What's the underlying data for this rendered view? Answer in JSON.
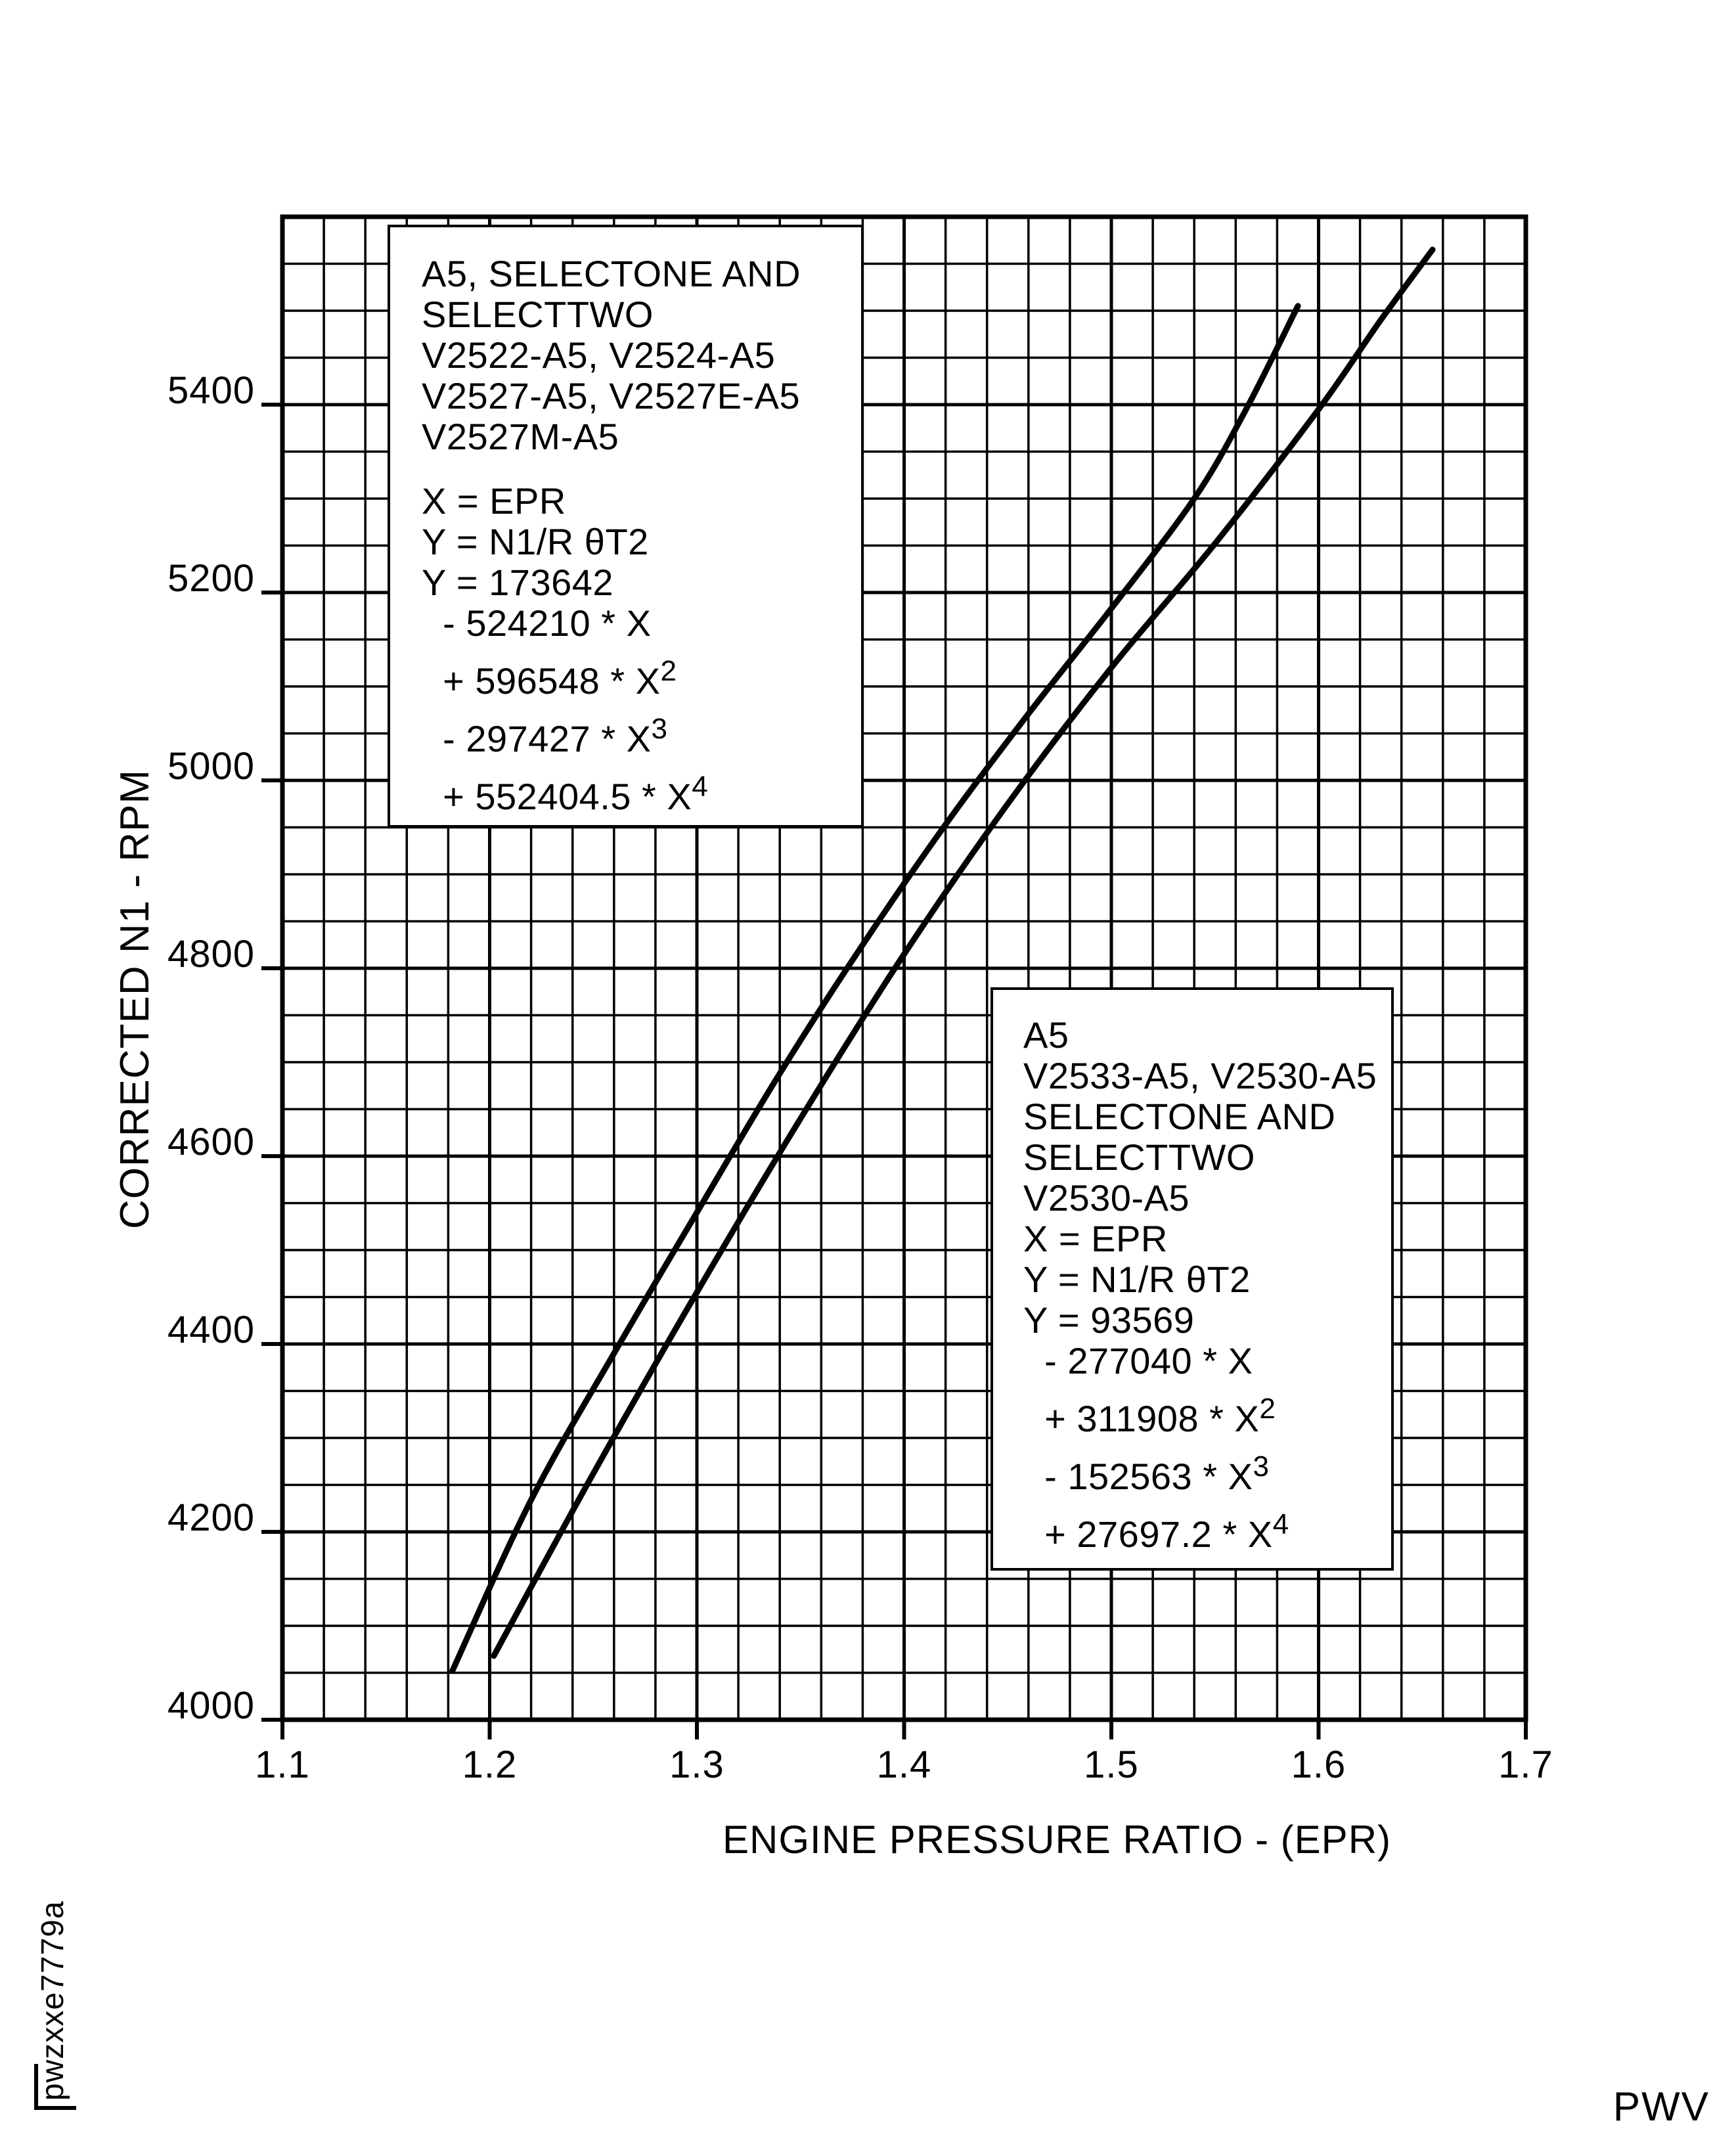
{
  "page": {
    "background": "#ffffff",
    "ink": "#000000"
  },
  "footer": {
    "watermark": "pwzxxe7779a",
    "publisher_code": "PWV"
  },
  "chart_data": {
    "type": "line",
    "title": "",
    "xlabel": "ENGINE PRESSURE RATIO - (EPR)",
    "ylabel": "CORRECTED N1 - RPM",
    "xlim": [
      1.1,
      1.7
    ],
    "ylim": [
      4000,
      5600
    ],
    "x_major_step": 0.1,
    "x_minor_step": 0.02,
    "y_major_step": 200,
    "y_minor_step": 50,
    "x_tick_labels": [
      "1.1",
      "1.2",
      "1.3",
      "1.4",
      "1.5",
      "1.6",
      "1.7"
    ],
    "y_tick_labels": [
      "4000",
      "4200",
      "4400",
      "4600",
      "4800",
      "5000",
      "5200",
      "5400"
    ],
    "grid": true,
    "legend_position": "annotation boxes inside plot",
    "line_color": "#000000",
    "line_width": 9,
    "series": [
      {
        "name": "A5, SELECTONE AND SELECTTWO (V2522-A5, V2524-A5, V2527-A5, V2527E-A5, V2527M-A5)",
        "points": [
          [
            1.182,
            4052
          ],
          [
            1.22,
            4234
          ],
          [
            1.26,
            4390
          ],
          [
            1.3,
            4540
          ],
          [
            1.34,
            4688
          ],
          [
            1.38,
            4825
          ],
          [
            1.42,
            4953
          ],
          [
            1.46,
            5071
          ],
          [
            1.5,
            5183
          ],
          [
            1.54,
            5300
          ],
          [
            1.565,
            5395
          ],
          [
            1.59,
            5505
          ]
        ]
      },
      {
        "name": "A5 (V2533-A5, V2530-A5) SELECTONE AND SELECTTWO (V2530-A5)",
        "points": [
          [
            1.202,
            4068
          ],
          [
            1.25,
            4262
          ],
          [
            1.3,
            4455
          ],
          [
            1.35,
            4640
          ],
          [
            1.4,
            4815
          ],
          [
            1.45,
            4975
          ],
          [
            1.5,
            5120
          ],
          [
            1.55,
            5252
          ],
          [
            1.6,
            5395
          ],
          [
            1.63,
            5490
          ],
          [
            1.655,
            5565
          ]
        ]
      }
    ],
    "annotations": [
      {
        "id": "equation-box-1",
        "lines": [
          "A5, SELECTONE AND",
          "SELECTTWO",
          "V2522-A5, V2524-A5",
          "V2527-A5, V2527E-A5",
          "V2527M-A5",
          "",
          "X = EPR",
          "Y = N1/R θT2",
          "Y = 173642",
          "  - 524210 * X",
          "  + 596548 * X^2",
          "  - 297427 * X^3",
          "  + 552404.5 * X^4"
        ]
      },
      {
        "id": "equation-box-2",
        "lines": [
          "A5",
          "V2533-A5, V2530-A5",
          "SELECTONE AND",
          "SELECTTWO",
          "V2530-A5",
          "X = EPR",
          "Y = N1/R θT2",
          "Y = 93569",
          "  - 277040 * X",
          "  + 311908 * X^2",
          "  - 152563 * X^3",
          "  + 27697.2 * X^4"
        ]
      }
    ]
  }
}
